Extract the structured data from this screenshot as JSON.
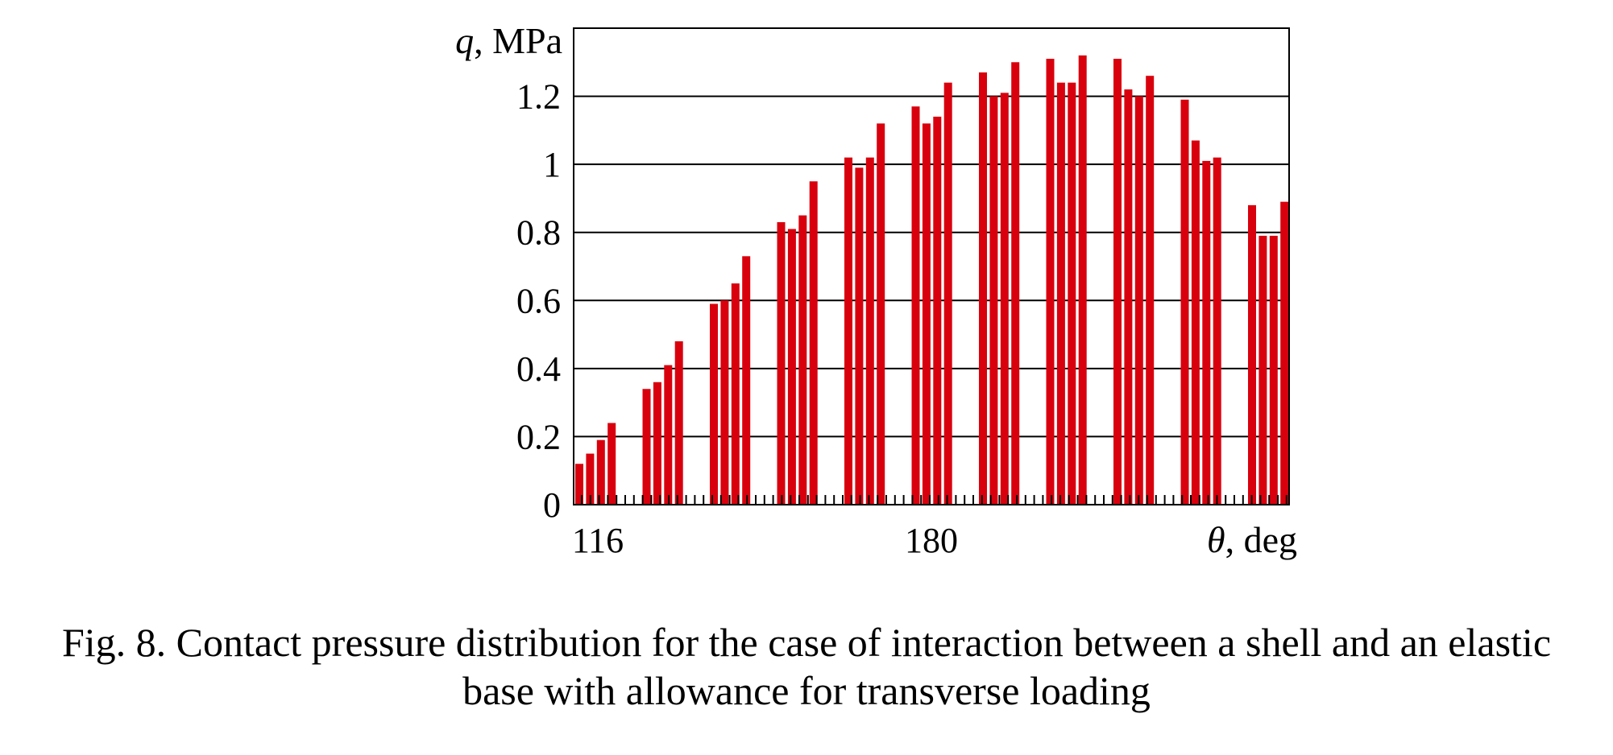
{
  "chart_data": {
    "type": "bar",
    "ylabel_var": "q",
    "ylabel_unit": ", MPa",
    "xlabel_var": "θ",
    "xlabel_unit": ", deg",
    "ylim": [
      0,
      1.4
    ],
    "yticks": [
      {
        "value": 0,
        "label": "0"
      },
      {
        "value": 0.2,
        "label": "0.2"
      },
      {
        "value": 0.4,
        "label": "0.4"
      },
      {
        "value": 0.6,
        "label": "0.6"
      },
      {
        "value": 0.8,
        "label": "0.8"
      },
      {
        "value": 1,
        "label": "1"
      },
      {
        "value": 1.2,
        "label": "1.2"
      }
    ],
    "xlim": [
      116,
      244
    ],
    "xticks": [
      {
        "value": 116,
        "label": "116"
      },
      {
        "value": 180,
        "label": "180"
      }
    ],
    "grid": true,
    "bar_color": "#d9000d",
    "groups": [
      {
        "values": [
          0.12,
          0.15,
          0.19,
          0.24
        ]
      },
      {
        "values": [
          0.34,
          0.36,
          0.41,
          0.48
        ]
      },
      {
        "values": [
          0.59,
          0.6,
          0.65,
          0.73
        ]
      },
      {
        "values": [
          0.83,
          0.81,
          0.85,
          0.95
        ]
      },
      {
        "values": [
          1.02,
          0.99,
          1.02,
          1.12
        ]
      },
      {
        "values": [
          1.17,
          1.12,
          1.14,
          1.24
        ]
      },
      {
        "values": [
          1.27,
          1.2,
          1.21,
          1.3
        ]
      },
      {
        "values": [
          1.31,
          1.24,
          1.24,
          1.32
        ]
      },
      {
        "values": [
          1.31,
          1.22,
          1.2,
          1.26
        ]
      },
      {
        "values": [
          1.19,
          1.07,
          1.01,
          1.02
        ]
      },
      {
        "values": [
          0.88,
          0.79,
          0.79,
          0.89
        ]
      }
    ]
  },
  "caption": {
    "line1": "Fig. 8. Contact pressure distribution for the case of interaction between a shell and an elastic",
    "line2": "base with allowance for transverse loading"
  }
}
